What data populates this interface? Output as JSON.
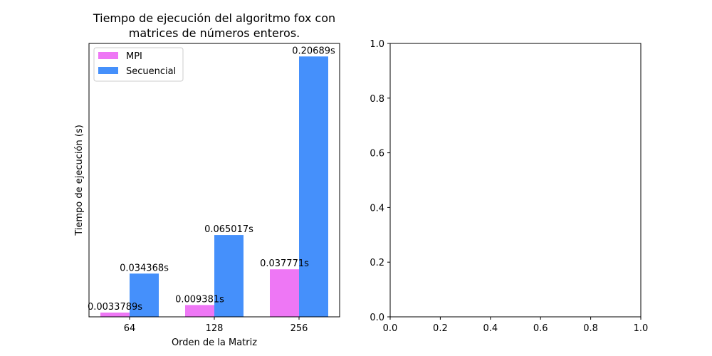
{
  "chart_data": [
    {
      "type": "bar",
      "title_lines": [
        "Tiempo de ejecución del algoritmo fox con",
        "matrices de números enteros."
      ],
      "xlabel": "Orden de la Matriz",
      "ylabel": "Tiempo de ejecución (s)",
      "categories": [
        "64",
        "128",
        "256"
      ],
      "ylim": [
        0,
        0.21724
      ],
      "yticks_visible": false,
      "grid": false,
      "legend": "upper-left",
      "series": [
        {
          "name": "MPI",
          "color": "#ee77f5",
          "values": [
            0.0033789,
            0.009381,
            0.037771
          ],
          "labels": [
            "0.0033789s",
            "0.009381s",
            "0.037771s"
          ]
        },
        {
          "name": "Secuencial",
          "color": "#4590fb",
          "values": [
            0.034368,
            0.065017,
            0.20689
          ],
          "labels": [
            "0.034368s",
            "0.065017s",
            "0.20689s"
          ]
        }
      ]
    },
    {
      "type": "empty",
      "xlim": [
        0,
        1
      ],
      "ylim": [
        0,
        1
      ],
      "xticks": [
        "0.0",
        "0.2",
        "0.4",
        "0.6",
        "0.8",
        "1.0"
      ],
      "yticks": [
        "0.0",
        "0.2",
        "0.4",
        "0.6",
        "0.8",
        "1.0"
      ]
    }
  ]
}
